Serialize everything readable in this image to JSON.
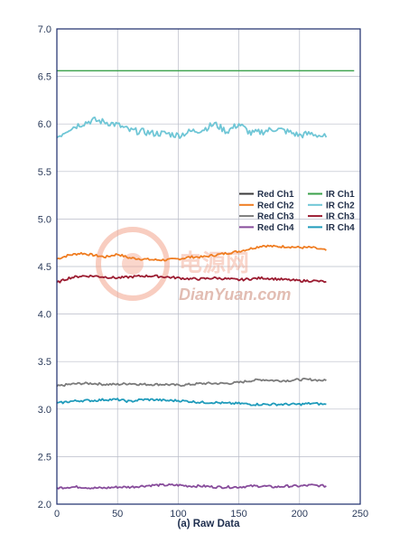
{
  "chart_data": {
    "type": "line",
    "title": "",
    "xlabel": "(a) Raw Data",
    "ylabel": "",
    "xlim": [
      0,
      250
    ],
    "ylim": [
      2.0,
      7.0
    ],
    "xticks": [
      0,
      50,
      100,
      150,
      200,
      250
    ],
    "yticks": [
      "2.0",
      "2.5",
      "3.0",
      "3.5",
      "4.0",
      "4.5",
      "5.0",
      "5.5",
      "6.0",
      "6.5",
      "7.0"
    ],
    "grid": true,
    "legend_position": "right",
    "series": [
      {
        "name": "Red Ch1",
        "color": "#3b3b3b",
        "x": [],
        "y": []
      },
      {
        "name": "Red Ch2",
        "color": "#ef7d22",
        "x": [
          0,
          10,
          20,
          30,
          40,
          50,
          60,
          70,
          80,
          90,
          100,
          110,
          120,
          130,
          140,
          150,
          160,
          170,
          180,
          190,
          200,
          210,
          222
        ],
        "y": [
          4.58,
          4.62,
          4.64,
          4.62,
          4.6,
          4.63,
          4.59,
          4.58,
          4.57,
          4.57,
          4.58,
          4.6,
          4.6,
          4.62,
          4.64,
          4.66,
          4.69,
          4.72,
          4.71,
          4.71,
          4.7,
          4.7,
          4.67
        ]
      },
      {
        "name": "Red Ch3",
        "color": "#7b7b7b",
        "x": [
          0,
          10,
          20,
          30,
          40,
          50,
          60,
          70,
          80,
          90,
          100,
          110,
          120,
          130,
          140,
          150,
          160,
          170,
          180,
          190,
          200,
          210,
          222
        ],
        "y": [
          3.24,
          3.26,
          3.27,
          3.27,
          3.26,
          3.26,
          3.27,
          3.26,
          3.26,
          3.26,
          3.25,
          3.26,
          3.27,
          3.27,
          3.27,
          3.28,
          3.3,
          3.31,
          3.3,
          3.3,
          3.31,
          3.31,
          3.3
        ]
      },
      {
        "name": "Red Ch4",
        "color": "#874c9b",
        "x": [
          0,
          10,
          20,
          30,
          40,
          50,
          60,
          70,
          80,
          90,
          100,
          110,
          120,
          130,
          140,
          150,
          160,
          170,
          180,
          190,
          200,
          210,
          222
        ],
        "y": [
          2.17,
          2.18,
          2.18,
          2.17,
          2.17,
          2.18,
          2.18,
          2.19,
          2.2,
          2.2,
          2.2,
          2.19,
          2.19,
          2.18,
          2.18,
          2.18,
          2.19,
          2.19,
          2.18,
          2.19,
          2.19,
          2.2,
          2.19
        ]
      },
      {
        "name": "IR Ch1",
        "color": "#3aa14a",
        "x": [
          0,
          245
        ],
        "y": [
          6.56,
          6.56
        ]
      },
      {
        "name": "IR Ch2",
        "color": "#6fc6d6",
        "x": [
          0,
          10,
          20,
          30,
          40,
          50,
          60,
          70,
          80,
          90,
          100,
          110,
          120,
          130,
          140,
          150,
          160,
          170,
          180,
          190,
          200,
          210,
          222
        ],
        "y": [
          5.86,
          5.95,
          6.0,
          6.04,
          6.02,
          5.99,
          5.93,
          5.92,
          5.9,
          5.9,
          5.88,
          5.92,
          5.94,
          6.0,
          5.92,
          6.0,
          5.9,
          5.92,
          5.95,
          5.92,
          5.88,
          5.9,
          5.86
        ]
      },
      {
        "name": "IR Ch3",
        "color": "#9b1b30",
        "x": [
          0,
          10,
          20,
          30,
          40,
          50,
          60,
          70,
          80,
          90,
          100,
          110,
          120,
          130,
          140,
          150,
          160,
          170,
          180,
          190,
          200,
          210,
          222
        ],
        "y": [
          4.33,
          4.38,
          4.4,
          4.4,
          4.39,
          4.38,
          4.39,
          4.4,
          4.4,
          4.39,
          4.38,
          4.37,
          4.37,
          4.38,
          4.37,
          4.36,
          4.37,
          4.38,
          4.37,
          4.36,
          4.35,
          4.35,
          4.34
        ]
      },
      {
        "name": "IR Ch4",
        "color": "#1f9bbb",
        "x": [
          0,
          10,
          20,
          30,
          40,
          50,
          60,
          70,
          80,
          90,
          100,
          110,
          120,
          130,
          140,
          150,
          160,
          170,
          180,
          190,
          200,
          210,
          222
        ],
        "y": [
          3.06,
          3.08,
          3.09,
          3.09,
          3.1,
          3.1,
          3.08,
          3.1,
          3.1,
          3.09,
          3.09,
          3.08,
          3.07,
          3.07,
          3.06,
          3.06,
          3.05,
          3.05,
          3.05,
          3.05,
          3.05,
          3.06,
          3.05
        ]
      }
    ]
  },
  "watermark": {
    "site": "DianYuan.com",
    "logo_text": "电源网"
  }
}
